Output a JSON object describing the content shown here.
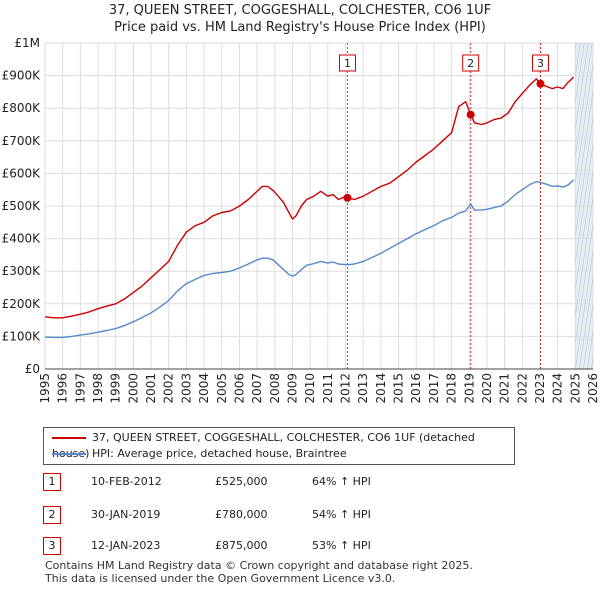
{
  "header": {
    "title": "37, QUEEN STREET, COGGESHALL, COLCHESTER, CO6 1UF",
    "subtitle": "Price paid vs. HM Land Registry's House Price Index (HPI)"
  },
  "chart_data": {
    "type": "line",
    "title": "37, QUEEN STREET, COGGESHALL, COLCHESTER, CO6 1UF",
    "subtitle": "Price paid vs. HM Land Registry's House Price Index (HPI)",
    "xlabel": "",
    "ylabel": "",
    "xlim": [
      1995,
      2026
    ],
    "ylim": [
      0,
      1000000
    ],
    "x_ticks": [
      "1995",
      "1996",
      "1997",
      "1998",
      "1999",
      "2000",
      "2001",
      "2002",
      "2003",
      "2004",
      "2005",
      "2006",
      "2007",
      "2008",
      "2009",
      "2010",
      "2011",
      "2012",
      "2013",
      "2014",
      "2015",
      "2016",
      "2017",
      "2018",
      "2019",
      "2020",
      "2021",
      "2022",
      "2023",
      "2024",
      "2025",
      "2026"
    ],
    "y_ticks": [
      {
        "value": 0,
        "label": "£0"
      },
      {
        "value": 100000,
        "label": "£100K"
      },
      {
        "value": 200000,
        "label": "£200K"
      },
      {
        "value": 300000,
        "label": "£300K"
      },
      {
        "value": 400000,
        "label": "£400K"
      },
      {
        "value": 500000,
        "label": "£500K"
      },
      {
        "value": 600000,
        "label": "£600K"
      },
      {
        "value": 700000,
        "label": "£700K"
      },
      {
        "value": 800000,
        "label": "£800K"
      },
      {
        "value": 900000,
        "label": "£900K"
      },
      {
        "value": 1000000,
        "label": "£1M"
      }
    ],
    "grid": true,
    "future_shading_from": 2025.0,
    "series": [
      {
        "name": "37, QUEEN STREET, COGGESHALL, COLCHESTER, CO6 1UF (detached house)",
        "color": "#cc0000",
        "x": [
          1995.0,
          1995.5,
          1996.0,
          1996.5,
          1997.0,
          1997.5,
          1998.0,
          1998.5,
          1999.0,
          1999.5,
          2000.0,
          2000.5,
          2001.0,
          2001.5,
          2002.0,
          2002.5,
          2003.0,
          2003.5,
          2004.0,
          2004.5,
          2005.0,
          2005.5,
          2006.0,
          2006.5,
          2007.0,
          2007.3,
          2007.6,
          2007.9,
          2008.2,
          2008.5,
          2008.8,
          2009.0,
          2009.2,
          2009.5,
          2009.8,
          2010.2,
          2010.6,
          2011.0,
          2011.3,
          2011.6,
          2011.9,
          2012.11,
          2012.5,
          2013.0,
          2013.5,
          2014.0,
          2014.5,
          2015.0,
          2015.5,
          2016.0,
          2016.5,
          2017.0,
          2017.5,
          2018.0,
          2018.4,
          2018.8,
          2019.08,
          2019.3,
          2019.7,
          2020.0,
          2020.4,
          2020.8,
          2021.2,
          2021.6,
          2022.0,
          2022.4,
          2022.8,
          2023.03,
          2023.3,
          2023.7,
          2024.0,
          2024.3,
          2024.6,
          2024.9
        ],
        "values": [
          160000,
          157000,
          157000,
          162000,
          168000,
          175000,
          185000,
          193000,
          200000,
          215000,
          235000,
          255000,
          280000,
          305000,
          330000,
          380000,
          420000,
          440000,
          450000,
          470000,
          480000,
          485000,
          500000,
          520000,
          545000,
          560000,
          560000,
          548000,
          530000,
          510000,
          480000,
          460000,
          470000,
          500000,
          520000,
          530000,
          545000,
          530000,
          535000,
          520000,
          527000,
          525000,
          520000,
          530000,
          545000,
          560000,
          570000,
          590000,
          610000,
          635000,
          655000,
          675000,
          700000,
          725000,
          805000,
          820000,
          780000,
          755000,
          750000,
          755000,
          765000,
          770000,
          785000,
          820000,
          845000,
          870000,
          890000,
          875000,
          868000,
          860000,
          865000,
          860000,
          880000,
          895000
        ]
      },
      {
        "name": "HPI: Average price, detached house, Braintree",
        "color": "#5588cc",
        "x": [
          1995.0,
          1995.5,
          1996.0,
          1996.5,
          1997.0,
          1997.5,
          1998.0,
          1998.5,
          1999.0,
          1999.5,
          2000.0,
          2000.5,
          2001.0,
          2001.5,
          2002.0,
          2002.5,
          2003.0,
          2003.5,
          2004.0,
          2004.5,
          2005.0,
          2005.5,
          2006.0,
          2006.5,
          2007.0,
          2007.3,
          2007.6,
          2007.9,
          2008.2,
          2008.5,
          2008.8,
          2009.0,
          2009.2,
          2009.5,
          2009.8,
          2010.2,
          2010.6,
          2011.0,
          2011.3,
          2011.6,
          2011.9,
          2012.11,
          2012.5,
          2013.0,
          2013.5,
          2014.0,
          2014.5,
          2015.0,
          2015.5,
          2016.0,
          2016.5,
          2017.0,
          2017.5,
          2018.0,
          2018.4,
          2018.8,
          2019.08,
          2019.3,
          2019.7,
          2020.0,
          2020.4,
          2020.8,
          2021.2,
          2021.6,
          2022.0,
          2022.4,
          2022.8,
          2023.03,
          2023.3,
          2023.7,
          2024.0,
          2024.3,
          2024.6,
          2024.9
        ],
        "values": [
          98000,
          97000,
          97000,
          100000,
          104000,
          108000,
          113000,
          118000,
          124000,
          133000,
          145000,
          158000,
          172000,
          190000,
          210000,
          240000,
          262000,
          275000,
          287000,
          293000,
          296000,
          300000,
          310000,
          322000,
          335000,
          340000,
          340000,
          335000,
          320000,
          305000,
          290000,
          285000,
          290000,
          305000,
          318000,
          323000,
          330000,
          325000,
          328000,
          322000,
          321000,
          320000,
          322000,
          330000,
          342000,
          355000,
          370000,
          385000,
          400000,
          415000,
          428000,
          440000,
          455000,
          465000,
          478000,
          485000,
          506000,
          487000,
          488000,
          490000,
          495000,
          500000,
          515000,
          535000,
          550000,
          565000,
          575000,
          572000,
          568000,
          560000,
          562000,
          558000,
          565000,
          580000
        ]
      }
    ],
    "sales": [
      {
        "num": "1",
        "x": 2012.11,
        "value": 525000,
        "date": "10-FEB-2012",
        "price": "£525,000",
        "hpi": "64% ↑ HPI"
      },
      {
        "num": "2",
        "x": 2019.08,
        "value": 780000,
        "date": "30-JAN-2019",
        "price": "£780,000",
        "hpi": "54% ↑ HPI"
      },
      {
        "num": "3",
        "x": 2023.03,
        "value": 875000,
        "date": "12-JAN-2023",
        "price": "£875,000",
        "hpi": "53% ↑ HPI"
      }
    ]
  },
  "legend": {
    "property_label": "37, QUEEN STREET, COGGESHALL, COLCHESTER, CO6 1UF (detached house)",
    "hpi_label": "HPI: Average price, detached house, Braintree"
  },
  "footer": {
    "line1": "Contains HM Land Registry data © Crown copyright and database right 2025.",
    "line2": "This data is licensed under the Open Government Licence v3.0."
  },
  "colors": {
    "property": "#cc0000",
    "hpi": "#5588cc",
    "grid": "#dddddd",
    "sale_line": "#cc0000",
    "shade": "#dde4f0"
  }
}
